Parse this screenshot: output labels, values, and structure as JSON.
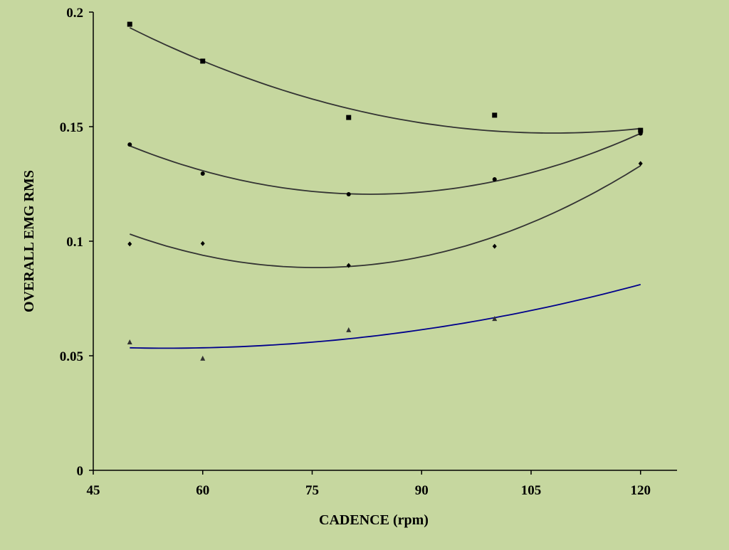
{
  "chart_data": {
    "type": "scatter",
    "title": "",
    "xlabel": "CADENCE (rpm)",
    "ylabel": "OVERALL EMG RMS",
    "xlim": [
      45,
      125
    ],
    "ylim": [
      0,
      0.2
    ],
    "xticks": [
      45,
      60,
      75,
      90,
      105,
      120
    ],
    "xtick_labels": [
      "45",
      "60",
      "75",
      "90",
      "105",
      "120"
    ],
    "yticks": [
      0,
      0.05,
      0.1,
      0.15,
      0.2
    ],
    "ytick_labels": [
      "0",
      "0.05",
      "0.1",
      "0.15",
      "0.2"
    ],
    "grid": false,
    "legend": "none",
    "series": [
      {
        "name": "squares",
        "marker": "square",
        "color": "#000000",
        "x": [
          50,
          60,
          80,
          100,
          120
        ],
        "y": [
          0.1947,
          0.1786,
          0.154,
          0.155,
          0.1484
        ],
        "trendline": {
          "type": "quadratic",
          "vertex_x": 108,
          "vertex_y": 0.1472,
          "a": 1.367e-05,
          "x_range": [
            50,
            120
          ],
          "color": "#333333"
        }
      },
      {
        "name": "circles",
        "marker": "circle",
        "color": "#000000",
        "x": [
          50,
          60,
          80,
          100,
          120
        ],
        "y": [
          0.1422,
          0.1295,
          0.1205,
          0.127,
          0.147
        ],
        "trendline": {
          "type": "quadratic",
          "vertex_x": 83,
          "vertex_y": 0.1205,
          "a": 1.94e-05,
          "x_range": [
            50,
            120
          ],
          "color": "#333333"
        }
      },
      {
        "name": "diamonds",
        "marker": "diamond",
        "color": "#000000",
        "x": [
          50,
          60,
          80,
          100,
          120
        ],
        "y": [
          0.0988,
          0.099,
          0.0894,
          0.0978,
          0.1339
        ],
        "trendline": {
          "type": "quadratic",
          "vertex_x": 75.5,
          "vertex_y": 0.0885,
          "a": 2.245e-05,
          "x_range": [
            50,
            120
          ],
          "color": "#333333"
        }
      },
      {
        "name": "triangles",
        "marker": "triangle",
        "color": "#333333",
        "x": [
          50,
          60,
          80,
          100
        ],
        "y": [
          0.0559,
          0.0488,
          0.0612,
          0.0661
        ],
        "trendline": {
          "type": "quadratic",
          "vertex_x": 55,
          "vertex_y": 0.0533,
          "a": 6.58e-06,
          "x_range": [
            50,
            120
          ],
          "color": "#00008b"
        }
      }
    ]
  }
}
